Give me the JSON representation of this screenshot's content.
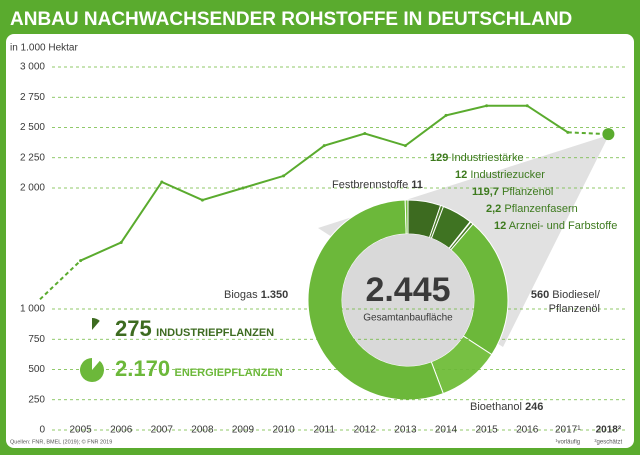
{
  "chart_data": [
    {
      "type": "line",
      "title": "ANBAU NACHWACHSENDER ROHSTOFFE IN DEUTSCHLAND",
      "unit_label": "in 1.000 Hektar",
      "categories": [
        null,
        "2005",
        "2006",
        "2007",
        "2008",
        "2009",
        "2010",
        "2011",
        "2012",
        "2013",
        "2014",
        "2015",
        "2016",
        "2017¹",
        "2018²"
      ],
      "values": [
        1080,
        1400,
        1550,
        2050,
        1900,
        2000,
        2100,
        2350,
        2450,
        2350,
        2600,
        2680,
        2680,
        2460,
        2445
      ],
      "color": "#5aab2e",
      "ylim": [
        0,
        3000
      ],
      "yticks": [
        0,
        250,
        500,
        750,
        {
          "value": 1000,
          "label": "1 000"
        },
        {
          "value": 2000,
          "label": "2 000"
        },
        {
          "value": 2250,
          "label": "2 250"
        },
        {
          "value": 2500,
          "label": "2 500"
        },
        {
          "value": 2750,
          "label": "2 750"
        },
        {
          "value": 3000,
          "label": "3 000"
        }
      ],
      "grid": true,
      "footnotes": [
        "¹vorläufig",
        "²geschätzt"
      ],
      "source": "Quellen: FNR, BMEL (2019); © FNR 2019"
    },
    {
      "type": "donut",
      "center_value": {
        "value": 2445,
        "label": "2.445"
      },
      "center_label": "Gesamtanbaufläche",
      "categories": [
        "Industriestärke",
        "Industriezucker",
        "Pflanzenöl",
        "Pflanzenfasern",
        "Arznei- und Farbstoffe",
        "Biodiesel/ Pflanzenöl",
        "Bioethanol",
        "Biogas",
        "Festbrennstoffe"
      ],
      "values": [
        129,
        12,
        119.7,
        2.2,
        12,
        560,
        246,
        1350,
        11
      ],
      "value_labels": [
        "129",
        "12",
        "119,7",
        "2,2",
        "12",
        "560",
        "246",
        "1.350",
        "11"
      ],
      "colors": [
        "#3d6b20",
        "#4a7d27",
        "#3f7322",
        "#4a7d27",
        "#4a7d27",
        "#6cb83a",
        "#77c043",
        "#6cb83a",
        "#77c043"
      ],
      "groups": [
        {
          "name": "INDUSTRIEPFLANZEN",
          "value": 275,
          "label": "275",
          "color": "#3d6b20"
        },
        {
          "name": "ENERGIEPFLANZEN",
          "value": 2170,
          "label": "2.170",
          "color": "#6cb83a"
        }
      ]
    }
  ]
}
